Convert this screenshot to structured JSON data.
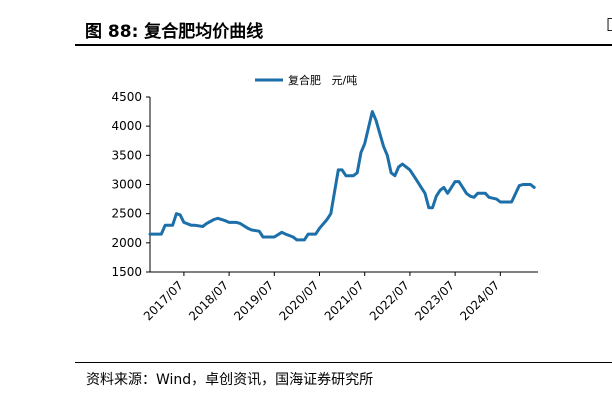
{
  "figure": {
    "title": "图 88:  复合肥均价曲线",
    "source": "资料来源：Wind，卓创资讯，国海证券研究所"
  },
  "chart_data": {
    "type": "line",
    "title": "",
    "xlabel": "",
    "ylabel": "",
    "ylim": [
      1500,
      4500
    ],
    "yticks": [
      1500,
      2000,
      2500,
      3000,
      3500,
      4000,
      4500
    ],
    "xlim": [
      "2016-10",
      "2025-05"
    ],
    "xticks": [
      "2017/07",
      "2018/07",
      "2019/07",
      "2020/07",
      "2021/07",
      "2022/07",
      "2023/07",
      "2024/07"
    ],
    "grid": false,
    "legend": "top-center",
    "color": "#1c6fa8",
    "series": [
      {
        "name": "复合肥   元/吨",
        "x": [
          "2016-10",
          "2017-01",
          "2017-02",
          "2017-04",
          "2017-05",
          "2017-06",
          "2017-07",
          "2017-09",
          "2017-10",
          "2017-12",
          "2018-01",
          "2018-03",
          "2018-04",
          "2018-06",
          "2018-07",
          "2018-09",
          "2018-10",
          "2018-12",
          "2019-01",
          "2019-03",
          "2019-04",
          "2019-06",
          "2019-07",
          "2019-09",
          "2019-10",
          "2019-12",
          "2020-01",
          "2020-03",
          "2020-04",
          "2020-06",
          "2020-07",
          "2020-09",
          "2020-10",
          "2020-12",
          "2021-01",
          "2021-02",
          "2021-03",
          "2021-04",
          "2021-05",
          "2021-06",
          "2021-07",
          "2021-09",
          "2021-10",
          "2021-12",
          "2022-01",
          "2022-02",
          "2022-03",
          "2022-04",
          "2022-05",
          "2022-06",
          "2022-07",
          "2022-08",
          "2022-09",
          "2022-10",
          "2022-11",
          "2022-12",
          "2023-01",
          "2023-02",
          "2023-03",
          "2023-04",
          "2023-05",
          "2023-06",
          "2023-07",
          "2023-08",
          "2023-09",
          "2023-10",
          "2023-11",
          "2023-12",
          "2024-01",
          "2024-03",
          "2024-04",
          "2024-06",
          "2024-07",
          "2024-09",
          "2024-10",
          "2024-12",
          "2025-01",
          "2025-03",
          "2025-04"
        ],
        "y": [
          2150,
          2150,
          2300,
          2300,
          2500,
          2480,
          2350,
          2300,
          2300,
          2280,
          2330,
          2400,
          2420,
          2380,
          2350,
          2350,
          2330,
          2250,
          2220,
          2200,
          2100,
          2100,
          2100,
          2180,
          2150,
          2100,
          2050,
          2050,
          2150,
          2150,
          2250,
          2400,
          2500,
          3250,
          3250,
          3150,
          3150,
          3150,
          3200,
          3550,
          3700,
          4250,
          4100,
          3650,
          3500,
          3200,
          3150,
          3300,
          3350,
          3300,
          3250,
          3150,
          3050,
          2950,
          2850,
          2600,
          2600,
          2800,
          2900,
          2950,
          2850,
          2950,
          3050,
          3050,
          2950,
          2850,
          2800,
          2780,
          2850,
          2850,
          2780,
          2750,
          2700,
          2700,
          2700,
          2980,
          3000,
          3000,
          2950
        ]
      }
    ]
  }
}
